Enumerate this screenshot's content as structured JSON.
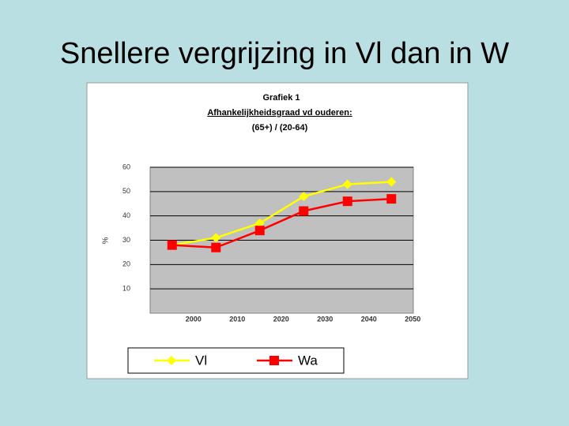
{
  "slide_title": "Snellere vergrijzing in Vl dan in W",
  "chart_data": {
    "type": "line",
    "title": "Grafiek 1",
    "subtitle": "Afhankelijkheidsgraad vd ouderen:",
    "subtitle2": "(65+) / (20-64)",
    "y_label": "%",
    "categories": [
      "2000",
      "2010",
      "2020",
      "2030",
      "2040",
      "2050"
    ],
    "series": [
      {
        "name": "Vl",
        "color": "#ffff00",
        "marker": "diamond",
        "values": [
          28,
          31,
          37,
          48,
          53,
          54
        ]
      },
      {
        "name": "Wa",
        "color": "#ff0000",
        "marker": "square",
        "values": [
          28,
          27,
          34,
          42,
          46,
          47
        ]
      }
    ],
    "ylim": [
      0,
      60
    ],
    "yticks": [
      10,
      20,
      30,
      40,
      50,
      60
    ],
    "grid": true,
    "legend": "bottom"
  }
}
